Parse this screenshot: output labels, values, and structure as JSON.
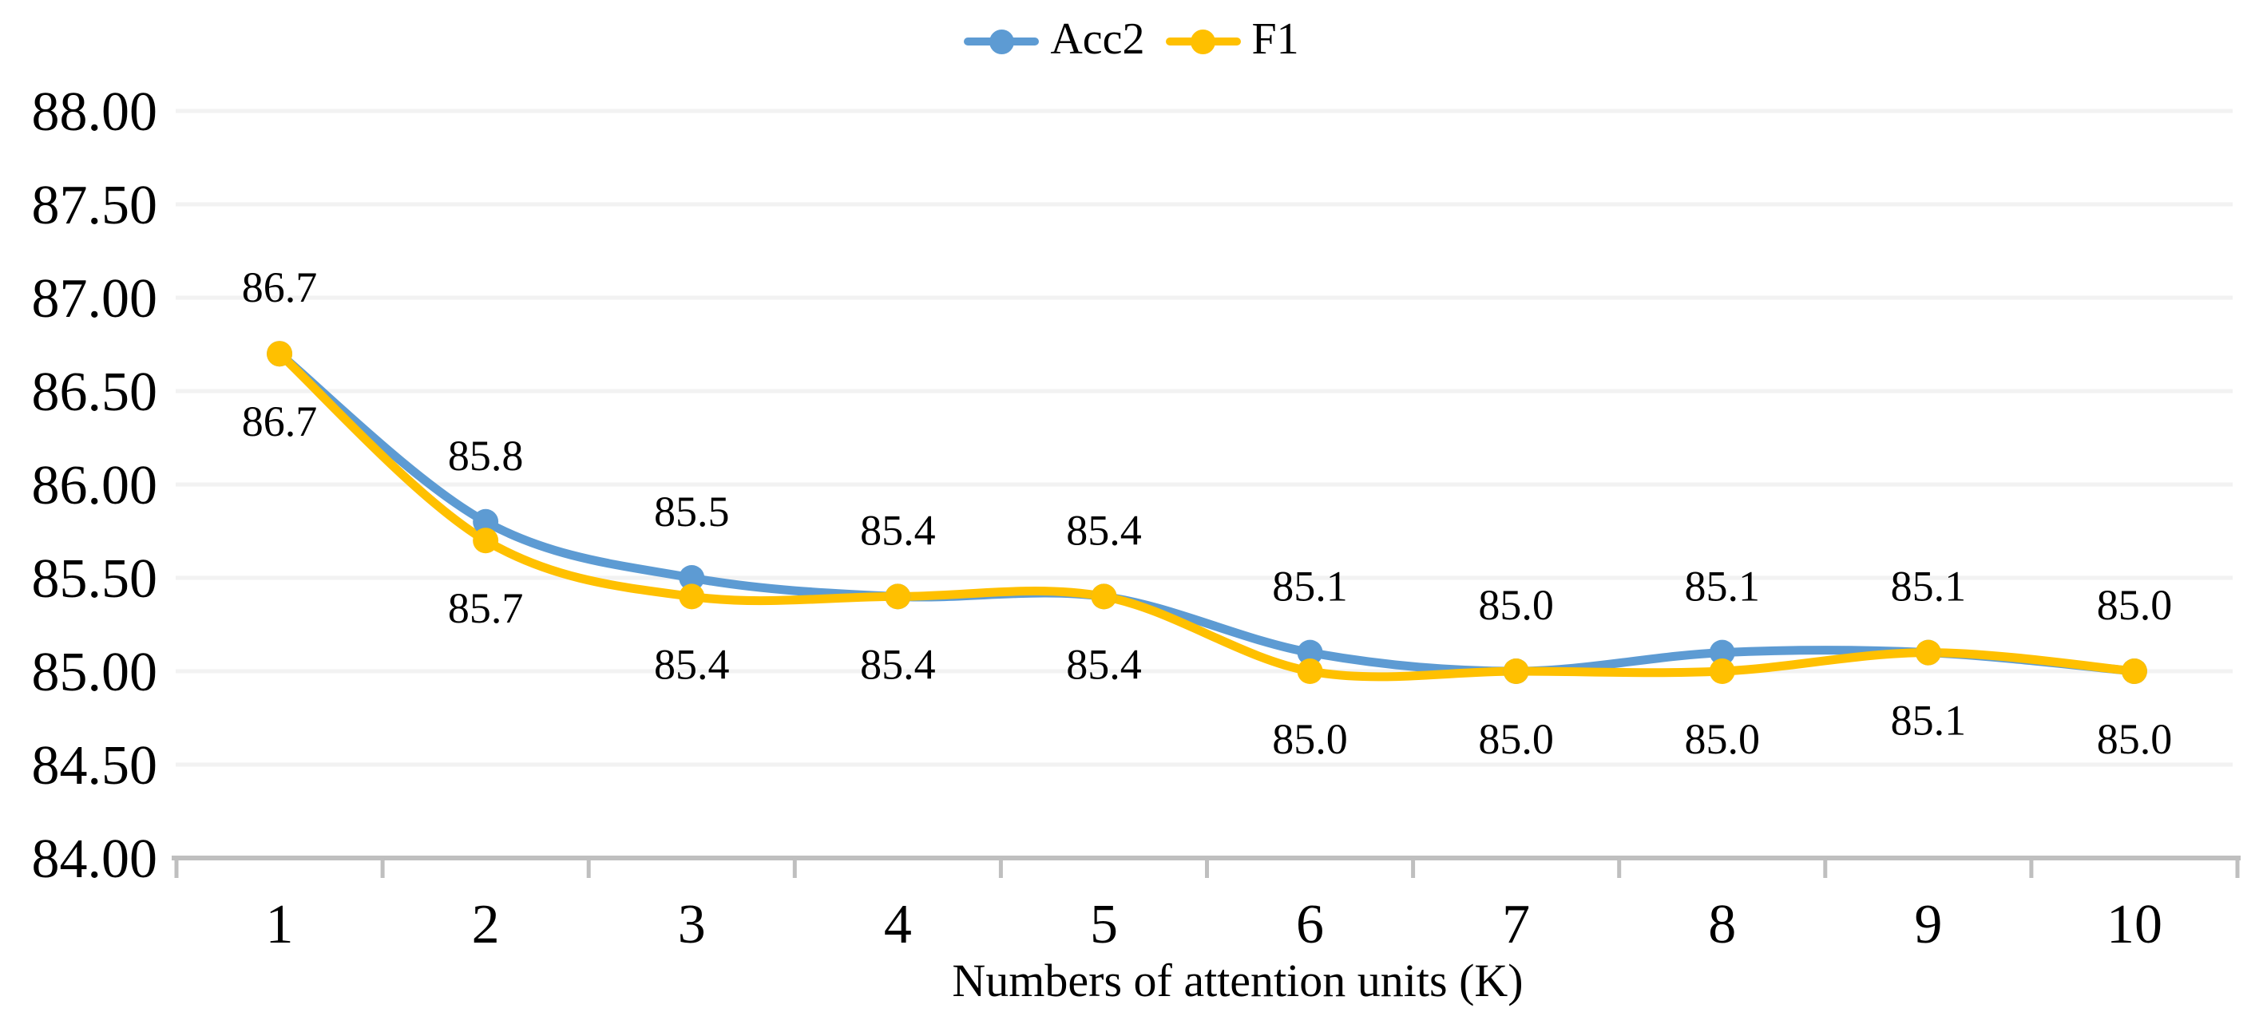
{
  "chart_data": {
    "type": "line",
    "title": "",
    "xlabel": "Numbers of attention units (K)",
    "ylabel": "",
    "x_categories": [
      "1",
      "2",
      "3",
      "4",
      "5",
      "6",
      "7",
      "8",
      "9",
      "10"
    ],
    "ylim": [
      84.0,
      88.0
    ],
    "ytick_step": 0.5,
    "ytick_labels": [
      "88.00",
      "87.50",
      "87.00",
      "86.50",
      "86.00",
      "85.50",
      "85.00",
      "84.50",
      "84.00"
    ],
    "grid": true,
    "smooth_lines": true,
    "legend_position": "top-center",
    "axis_color": "#BFBFBF",
    "gridline_color": "#F2F2F2",
    "text_color": "#000000",
    "series": [
      {
        "name": "Acc2",
        "color": "#5D9BD3",
        "marker": "circle",
        "label_position": "above",
        "values": [
          86.7,
          85.8,
          85.5,
          85.4,
          85.4,
          85.1,
          85.0,
          85.1,
          85.1,
          85.0
        ],
        "labels": [
          "86.7",
          "85.8",
          "85.5",
          "85.4",
          "85.4",
          "85.1",
          "85.0",
          "85.1",
          "85.1",
          "85.0"
        ]
      },
      {
        "name": "F1",
        "color": "#FFC000",
        "marker": "circle",
        "label_position": "below",
        "values": [
          86.7,
          85.7,
          85.4,
          85.4,
          85.4,
          85.0,
          85.0,
          85.0,
          85.1,
          85.0
        ],
        "labels": [
          "86.7",
          "85.7",
          "85.4",
          "85.4",
          "85.4",
          "85.0",
          "85.0",
          "85.0",
          "85.1",
          "85.0"
        ]
      }
    ]
  }
}
